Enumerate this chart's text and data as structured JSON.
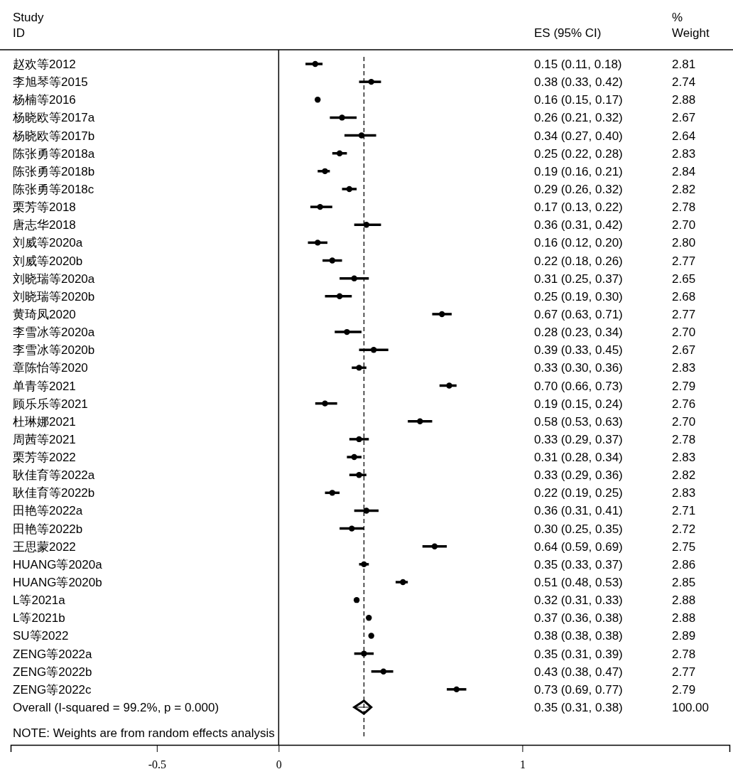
{
  "chart_data": {
    "type": "scatter",
    "orientation": "horizontal",
    "ylabel": "Study ID",
    "categories": [
      "赵欢等2012",
      "李旭琴等2015",
      "杨楠等2016",
      "杨晓欧等2017a",
      "杨晓欧等2017b",
      "陈张勇等2018a",
      "陈张勇等2018b",
      "陈张勇等2018c",
      "栗芳等2018",
      "唐志华2018",
      "刘威等2020a",
      "刘威等2020b",
      "刘晓瑞等2020a",
      "刘晓瑞等2020b",
      "黄琦凤2020",
      "李雪冰等2020a",
      "李雪冰等2020b",
      "章陈怡等2020",
      "单青等2021",
      "顾乐乐等2021",
      "杜琳娜2021",
      "周茜等2021",
      "栗芳等2022",
      "耿佳育等2022a",
      "耿佳育等2022b",
      "田艳等2022a",
      "田艳等2022b",
      "王思蒙2022",
      "HUANG等2020a",
      "HUANG等2020b",
      "L等2021a",
      "L等2021b",
      "SU等2022",
      "ZENG等2022a",
      "ZENG等2022b",
      "ZENG等2022c",
      "Overall  (I-squared = 99.2%, p = 0.000)"
    ],
    "series": [
      {
        "color": "#000000",
        "marker": "circle",
        "values": [
          0.15,
          0.38,
          0.16,
          0.26,
          0.34,
          0.25,
          0.19,
          0.29,
          0.17,
          0.36,
          0.16,
          0.22,
          0.31,
          0.25,
          0.67,
          0.28,
          0.39,
          0.33,
          0.7,
          0.19,
          0.58,
          0.33,
          0.31,
          0.33,
          0.22,
          0.36,
          0.3,
          0.64,
          0.35,
          0.51,
          0.32,
          0.37,
          0.38,
          0.35,
          0.43,
          0.73,
          null
        ],
        "errors": [
          [
            0.11,
            0.18
          ],
          [
            0.33,
            0.42
          ],
          [
            0.15,
            0.17
          ],
          [
            0.21,
            0.32
          ],
          [
            0.27,
            0.4
          ],
          [
            0.22,
            0.28
          ],
          [
            0.16,
            0.21
          ],
          [
            0.26,
            0.32
          ],
          [
            0.13,
            0.22
          ],
          [
            0.31,
            0.42
          ],
          [
            0.12,
            0.2
          ],
          [
            0.18,
            0.26
          ],
          [
            0.25,
            0.37
          ],
          [
            0.19,
            0.3
          ],
          [
            0.63,
            0.71
          ],
          [
            0.23,
            0.34
          ],
          [
            0.33,
            0.45
          ],
          [
            0.3,
            0.36
          ],
          [
            0.66,
            0.73
          ],
          [
            0.15,
            0.24
          ],
          [
            0.53,
            0.63
          ],
          [
            0.29,
            0.37
          ],
          [
            0.28,
            0.34
          ],
          [
            0.29,
            0.36
          ],
          [
            0.19,
            0.25
          ],
          [
            0.31,
            0.41
          ],
          [
            0.25,
            0.35
          ],
          [
            0.59,
            0.69
          ],
          [
            0.33,
            0.37
          ],
          [
            0.48,
            0.53
          ],
          [
            0.31,
            0.33
          ],
          [
            0.36,
            0.38
          ],
          [
            0.38,
            0.38
          ],
          [
            0.31,
            0.39
          ],
          [
            0.38,
            0.47
          ],
          [
            0.69,
            0.77
          ],
          null
        ]
      },
      {
        "color": "#000000",
        "marker": "diamond",
        "values": [
          null,
          null,
          null,
          null,
          null,
          null,
          null,
          null,
          null,
          null,
          null,
          null,
          null,
          null,
          null,
          null,
          null,
          null,
          null,
          null,
          null,
          null,
          null,
          null,
          null,
          null,
          null,
          null,
          null,
          null,
          null,
          null,
          null,
          null,
          null,
          null,
          0.35
        ],
        "errors": [
          null,
          null,
          null,
          null,
          null,
          null,
          null,
          null,
          null,
          null,
          null,
          null,
          null,
          null,
          null,
          null,
          null,
          null,
          null,
          null,
          null,
          null,
          null,
          null,
          null,
          null,
          null,
          null,
          null,
          null,
          null,
          null,
          null,
          null,
          null,
          null,
          [
            0.31,
            0.38
          ]
        ]
      }
    ],
    "xlim": [
      -1.1,
      1.85
    ],
    "xticks": [
      -0.5,
      0,
      1
    ],
    "ref_lines": [
      {
        "axis": "x",
        "value": 0,
        "line_style": "solid"
      },
      {
        "axis": "x",
        "value": 0.35,
        "line_style": "dashed"
      }
    ],
    "annotations": [
      "ES (95% CI)",
      "% Weight",
      "NOTE: Weights are from random effects analysis",
      "0.15 (0.11, 0.18)",
      "0.38 (0.33, 0.42)",
      "0.16 (0.15, 0.17)",
      "0.26 (0.21, 0.32)",
      "0.34 (0.27, 0.40)",
      "0.25 (0.22, 0.28)",
      "0.19 (0.16, 0.21)",
      "0.29 (0.26, 0.32)",
      "0.17 (0.13, 0.22)",
      "0.36 (0.31, 0.42)",
      "0.16 (0.12, 0.20)",
      "0.22 (0.18, 0.26)",
      "0.31 (0.25, 0.37)",
      "0.25 (0.19, 0.30)",
      "0.67 (0.63, 0.71)",
      "0.28 (0.23, 0.34)",
      "0.39 (0.33, 0.45)",
      "0.33 (0.30, 0.36)",
      "0.70 (0.66, 0.73)",
      "0.19 (0.15, 0.24)",
      "0.58 (0.53, 0.63)",
      "0.33 (0.29, 0.37)",
      "0.31 (0.28, 0.34)",
      "0.33 (0.29, 0.36)",
      "0.22 (0.19, 0.25)",
      "0.36 (0.31, 0.41)",
      "0.30 (0.25, 0.35)",
      "0.64 (0.59, 0.69)",
      "0.35 (0.33, 0.37)",
      "0.51 (0.48, 0.53)",
      "0.32 (0.31, 0.33)",
      "0.37 (0.36, 0.38)",
      "0.38 (0.38, 0.38)",
      "0.35 (0.31, 0.39)",
      "0.43 (0.38, 0.47)",
      "0.73 (0.69, 0.77)",
      "0.35 (0.31, 0.38)",
      "2.81",
      "2.74",
      "2.88",
      "2.67",
      "2.64",
      "2.83",
      "2.84",
      "2.82",
      "2.78",
      "2.70",
      "2.80",
      "2.77",
      "2.65",
      "2.68",
      "2.77",
      "2.70",
      "2.67",
      "2.83",
      "2.79",
      "2.76",
      "2.70",
      "2.78",
      "2.83",
      "2.82",
      "2.83",
      "2.71",
      "2.72",
      "2.75",
      "2.86",
      "2.85",
      "2.88",
      "2.88",
      "2.89",
      "2.78",
      "2.77",
      "2.79",
      "100.00"
    ],
    "grid": false
  }
}
